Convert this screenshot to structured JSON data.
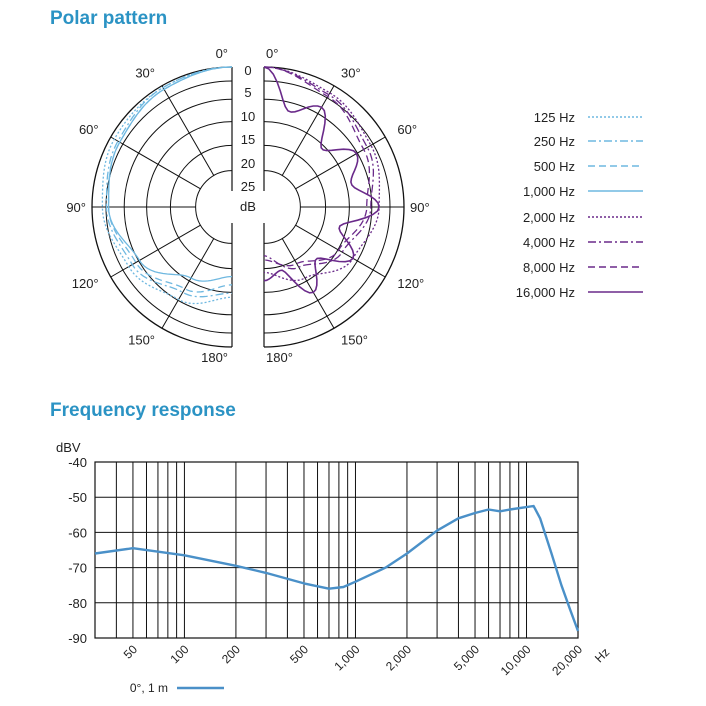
{
  "polar": {
    "title": "Polar pattern",
    "ring_labels": [
      "0",
      "5",
      "10",
      "15",
      "20",
      "25"
    ],
    "db_label": "dB",
    "angle_labels_left": [
      "0°",
      "30°",
      "60°",
      "90°",
      "120°",
      "150°",
      "180°"
    ],
    "angle_labels_right": [
      "0°",
      "30°",
      "60°",
      "90°",
      "120°",
      "150°",
      "180°"
    ],
    "legend": [
      {
        "label": "125 Hz",
        "color": "#6fb8e0",
        "dash": "2,2"
      },
      {
        "label": "250 Hz",
        "color": "#6fb8e0",
        "dash": "8,3,2,3"
      },
      {
        "label": "500 Hz",
        "color": "#6fb8e0",
        "dash": "7,4"
      },
      {
        "label": "1,000 Hz",
        "color": "#6fb8e0",
        "dash": ""
      },
      {
        "label": "2,000 Hz",
        "color": "#6a2a8a",
        "dash": "2,2"
      },
      {
        "label": "4,000 Hz",
        "color": "#6a2a8a",
        "dash": "8,3,2,3"
      },
      {
        "label": "8,000 Hz",
        "color": "#6a2a8a",
        "dash": "7,4"
      },
      {
        "label": "16,000 Hz",
        "color": "#6a2a8a",
        "dash": ""
      }
    ]
  },
  "frequency": {
    "title": "Frequency response",
    "ylabel": "dBV",
    "yticks": [
      "-40",
      "-50",
      "-60",
      "-70",
      "-80",
      "-90"
    ],
    "xticks": [
      "50",
      "100",
      "200",
      "500",
      "1,000",
      "2,000",
      "5,000",
      "10,000",
      "20,000"
    ],
    "xunit": "Hz",
    "legend_label": "0°, 1 m",
    "line_color": "#4a90c8"
  },
  "chart_data": [
    {
      "type": "line",
      "title": "Polar pattern",
      "projection": "polar",
      "angle_unit": "degrees",
      "radius_unit": "dB",
      "rlim": [
        -25,
        0
      ],
      "series": [
        {
          "name": "125 Hz",
          "theta": [
            0,
            30,
            60,
            90,
            120,
            150,
            180
          ],
          "r": [
            0,
            -0.5,
            -1,
            -2.5,
            -5,
            -8,
            -12
          ]
        },
        {
          "name": "250 Hz",
          "theta": [
            0,
            30,
            60,
            90,
            120,
            150,
            180
          ],
          "r": [
            0,
            -0.5,
            -2,
            -3.5,
            -6,
            -10,
            -13
          ]
        },
        {
          "name": "500 Hz",
          "theta": [
            0,
            30,
            60,
            90,
            120,
            150,
            180
          ],
          "r": [
            0,
            -1,
            -2.5,
            -4,
            -7,
            -11,
            -15
          ]
        },
        {
          "name": "1,000 Hz",
          "theta": [
            0,
            30,
            60,
            90,
            120,
            150,
            180
          ],
          "r": [
            0,
            -1,
            -2.5,
            -4,
            -8,
            -14,
            -17
          ]
        },
        {
          "name": "2,000 Hz",
          "theta": [
            0,
            30,
            60,
            90,
            120,
            150,
            180
          ],
          "r": [
            0,
            -2,
            -4,
            -6,
            -9,
            -14,
            -18
          ]
        },
        {
          "name": "4,000 Hz",
          "theta": [
            0,
            30,
            60,
            90,
            120,
            150,
            180
          ],
          "r": [
            0,
            -2.5,
            -5,
            -8,
            -12,
            -17,
            -22
          ]
        },
        {
          "name": "8,000 Hz",
          "theta": [
            0,
            30,
            60,
            90,
            120,
            150,
            180
          ],
          "r": [
            0,
            -3,
            -6,
            -9,
            -13,
            -18,
            -21
          ]
        },
        {
          "name": "16,000 Hz",
          "theta": [
            0,
            15,
            30,
            45,
            60,
            75,
            90,
            105,
            120,
            135,
            150,
            165,
            180
          ],
          "r": [
            0,
            -10,
            -6,
            -14,
            -8,
            -12,
            -6,
            -15,
            -9,
            -16,
            -10,
            -18,
            -16
          ]
        }
      ]
    },
    {
      "type": "line",
      "title": "Frequency response",
      "xscale": "log",
      "xlim": [
        30,
        20000
      ],
      "ylim": [
        -90,
        -40
      ],
      "ylabel": "dBV",
      "xlabel": "Hz",
      "series": [
        {
          "name": "0°, 1 m",
          "x": [
            30,
            50,
            100,
            200,
            300,
            500,
            700,
            850,
            1000,
            1500,
            2000,
            3000,
            4000,
            5000,
            6000,
            7000,
            8000,
            10000,
            11000,
            12000,
            14000,
            16000,
            18000,
            20000
          ],
          "y": [
            -66,
            -64.5,
            -66.5,
            -69.5,
            -71.5,
            -74.5,
            -76,
            -75.5,
            -74,
            -70,
            -66,
            -59.5,
            -56,
            -54.5,
            -53.5,
            -54,
            -53.5,
            -52.8,
            -52.5,
            -56,
            -66,
            -75,
            -82,
            -88
          ]
        }
      ]
    }
  ]
}
